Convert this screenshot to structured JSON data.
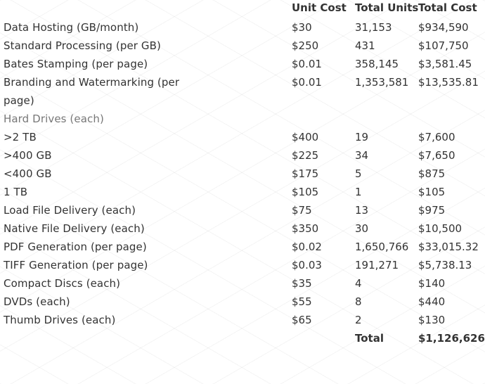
{
  "headers": {
    "description": "",
    "unit_cost": "Unit Cost",
    "total_units": "Total Units",
    "total_cost": "Total Cost"
  },
  "rows": [
    {
      "description": "Data Hosting (GB/month)",
      "unit_cost": "$30",
      "total_units": "31,153",
      "total_cost": "$934,590"
    },
    {
      "description": "Standard Processing (per GB)",
      "unit_cost": "$250",
      "total_units": "431",
      "total_cost": "$107,750"
    },
    {
      "description": "Bates Stamping (per page)",
      "unit_cost": "$0.01",
      "total_units": "358,145",
      "total_cost": "$3,581.45"
    },
    {
      "description": "Branding and Watermarking (per page)",
      "unit_cost": "$0.01",
      "total_units": "1,353,581",
      "total_cost": "$13,535.81"
    },
    {
      "description": "Hard Drives (each)",
      "unit_cost": "",
      "total_units": "",
      "total_cost": "",
      "subheader": true
    },
    {
      "description": ">2 TB",
      "unit_cost": "$400",
      "total_units": "19",
      "total_cost": "$7,600"
    },
    {
      "description": ">400 GB",
      "unit_cost": "$225",
      "total_units": "34",
      "total_cost": "$7,650"
    },
    {
      "description": "<400 GB",
      "unit_cost": "$175",
      "total_units": "5",
      "total_cost": "$875"
    },
    {
      "description": "1 TB",
      "unit_cost": "$105",
      "total_units": "1",
      "total_cost": "$105"
    },
    {
      "description": "Load File Delivery (each)",
      "unit_cost": "$75",
      "total_units": "13",
      "total_cost": "$975"
    },
    {
      "description": "Native File Delivery (each)",
      "unit_cost": "$350",
      "total_units": "30",
      "total_cost": "$10,500"
    },
    {
      "description": "PDF Generation (per page)",
      "unit_cost": "$0.02",
      "total_units": "1,650,766",
      "total_cost": "$33,015.32"
    },
    {
      "description": "TIFF Generation (per page)",
      "unit_cost": "$0.03",
      "total_units": "191,271",
      "total_cost": "$5,738.13"
    },
    {
      "description": "Compact Discs (each)",
      "unit_cost": "$35",
      "total_units": "4",
      "total_cost": "$140"
    },
    {
      "description": "DVDs (each)",
      "unit_cost": "$55",
      "total_units": "8",
      "total_cost": "$440"
    },
    {
      "description": "Thumb Drives (each)",
      "unit_cost": "$65",
      "total_units": "2",
      "total_cost": "$130"
    }
  ],
  "total": {
    "label": "Total",
    "amount": "$1,126,626"
  }
}
